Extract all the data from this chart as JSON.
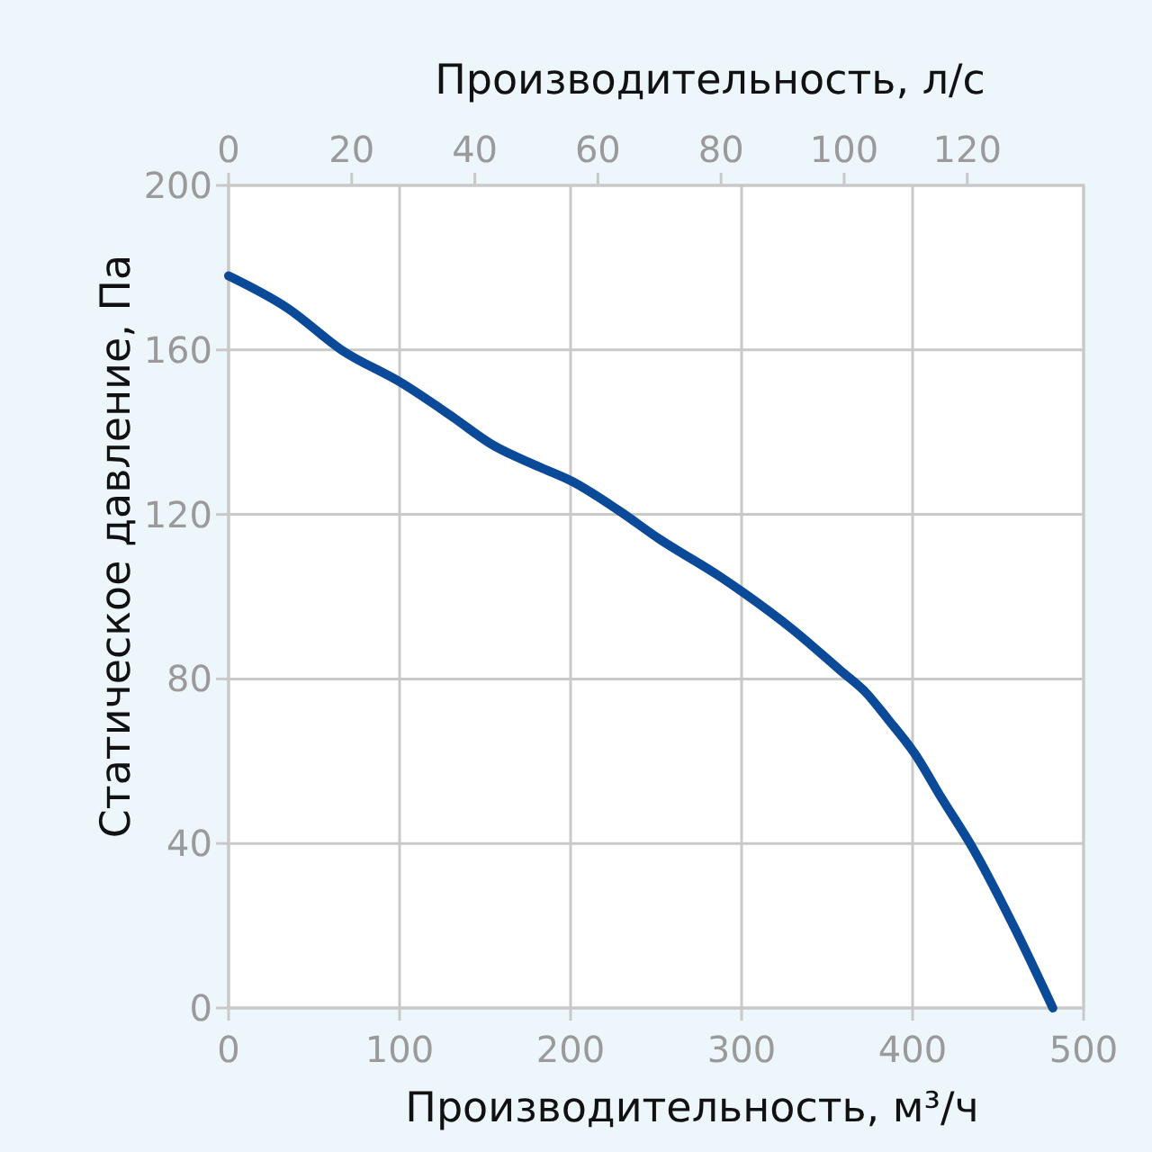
{
  "chart_data": {
    "type": "line",
    "xlabel": "Производительность, м³/ч",
    "ylabel": "Статическое давление, Па",
    "x2label": "Производительность, л/с",
    "x": [
      0,
      35,
      66,
      101,
      130,
      154,
      182,
      201,
      228,
      252,
      287,
      301,
      330,
      358,
      372,
      386,
      401,
      417,
      435,
      459,
      482
    ],
    "series": [
      {
        "color": "#0b4a99",
        "values": [
          178,
          170,
          160,
          152,
          144,
          137,
          131.5,
          128,
          121,
          114,
          105,
          101,
          92,
          82,
          77,
          70,
          62,
          51,
          39,
          20,
          0
        ]
      }
    ],
    "xlim": [
      0,
      500
    ],
    "xticks": [
      0,
      100,
      200,
      300,
      400,
      500
    ],
    "ylim": [
      0,
      200
    ],
    "yticks": [
      0,
      40,
      80,
      120,
      160,
      200
    ],
    "x2lim": [
      0,
      138.9
    ],
    "x2ticks": [
      0,
      20,
      40,
      60,
      80,
      100,
      120
    ],
    "grid": true,
    "line_style": "solid"
  }
}
